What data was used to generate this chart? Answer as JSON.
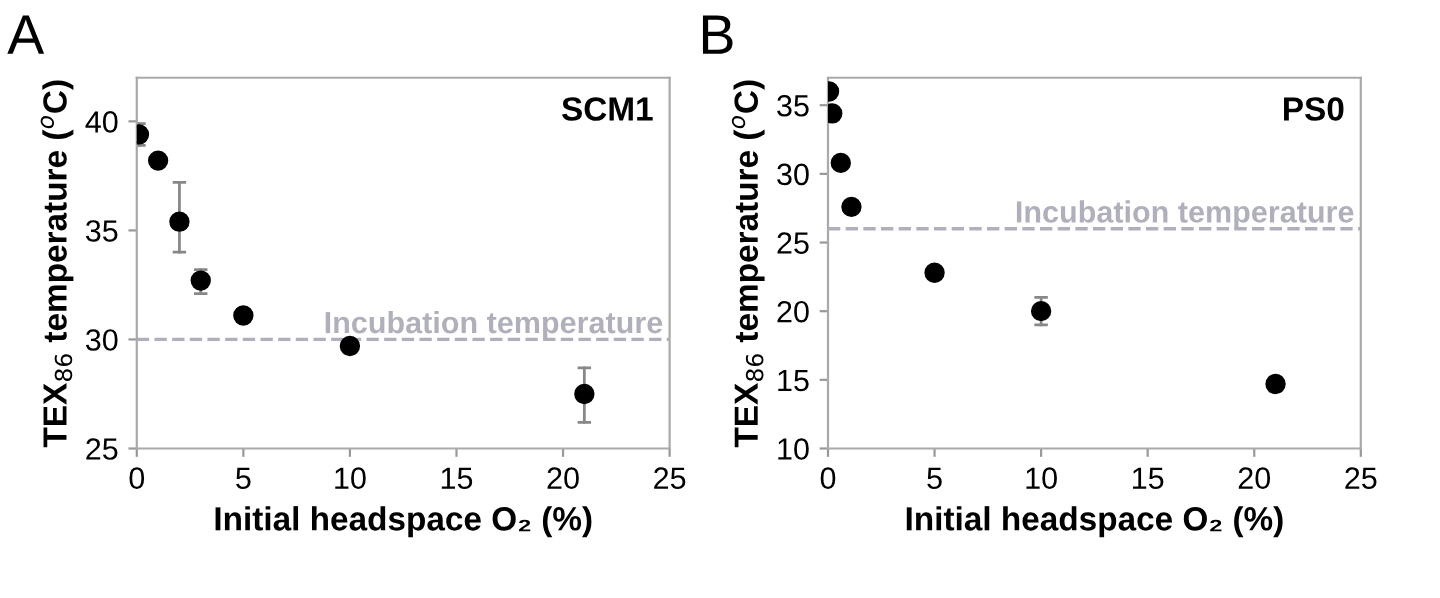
{
  "chart_data": [
    {
      "type": "scatter",
      "title": "A",
      "xlabel": "Initial headspace O₂ (%)",
      "ylabel": "TEX$_{86}$ temperature ($^{o}$C)",
      "annotations": [
        "SCM1"
      ],
      "x": [
        0.1,
        1,
        2,
        3,
        5,
        10,
        21
      ],
      "values": [
        39.4,
        38.2,
        35.4,
        32.7,
        31.1,
        29.7,
        27.5
      ],
      "color": "#000000",
      "marker": "circle",
      "errors": [
        0.5,
        null,
        [
          34.0,
          37.2
        ],
        [
          32.1,
          33.2
        ],
        null,
        null,
        [
          26.2,
          28.7
        ]
      ],
      "xlim": [
        0,
        25
      ],
      "xticks": [
        0,
        5,
        10,
        15,
        20,
        25
      ],
      "ylim": [
        25,
        42
      ],
      "yticks": [
        25,
        30,
        35,
        40
      ],
      "grid": false,
      "legend": false,
      "ref_lines": [
        {
          "axis": "y",
          "value": 30,
          "label": "Incubation temperature",
          "color": "#b0b0bc",
          "line_style": "dashed"
        }
      ]
    },
    {
      "type": "scatter",
      "title": "B",
      "xlabel": "Initial headspace O₂ (%)",
      "ylabel": "TEX$_{86}$ temperature ($^{o}$C)",
      "annotations": [
        "PS0"
      ],
      "x": [
        0.05,
        0.2,
        0.6,
        1.1,
        5,
        10,
        21
      ],
      "values": [
        36.0,
        34.4,
        30.8,
        27.6,
        22.8,
        20.0,
        14.7
      ],
      "color": "#000000",
      "marker": "circle",
      "errors": [
        null,
        null,
        null,
        null,
        null,
        1.0,
        0.5
      ],
      "xlim": [
        0,
        25
      ],
      "xticks": [
        0,
        5,
        10,
        15,
        20,
        25
      ],
      "ylim": [
        10,
        37
      ],
      "yticks": [
        10,
        15,
        20,
        25,
        30,
        35
      ],
      "grid": false,
      "legend": false,
      "ref_lines": [
        {
          "axis": "y",
          "value": 26,
          "label": "Incubation temperature",
          "color": "#b0b0bc",
          "line_style": "dashed"
        }
      ]
    }
  ]
}
